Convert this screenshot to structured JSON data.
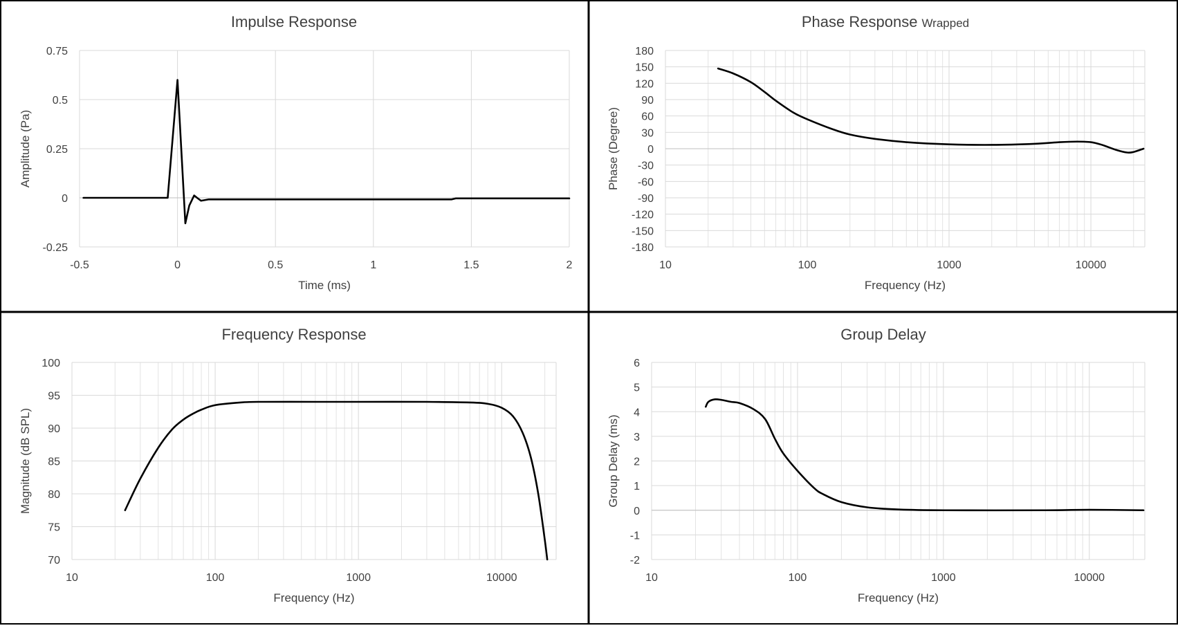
{
  "colors": {
    "line": "#000000",
    "grid": "#d9d9d9",
    "text": "#404040",
    "border": "#000000",
    "background": "#ffffff"
  },
  "chart_data": [
    {
      "id": "impulse",
      "type": "line",
      "title": "Impulse Response",
      "xlabel": "Time (ms)",
      "ylabel": "Amplitude (Pa)",
      "xscale": "linear",
      "xlim": [
        -0.5,
        2
      ],
      "ylim": [
        -0.25,
        0.75
      ],
      "xticks": [
        -0.5,
        0,
        0.5,
        1,
        1.5,
        2
      ],
      "xtick_labels": [
        "-0.5",
        "0",
        "0.5",
        "1",
        "1.5",
        "2"
      ],
      "yticks": [
        -0.25,
        0,
        0.25,
        0.5,
        0.75
      ],
      "ytick_labels": [
        "-0.25",
        "0",
        "0.25",
        "0.5",
        "0.75"
      ],
      "series": [
        {
          "name": "Impulse Response",
          "x": [
            -0.48,
            -0.05,
            0,
            0.04,
            0.06,
            0.085,
            0.1,
            0.12,
            0.16,
            0.2,
            1.0,
            1.4,
            1.42,
            2.0
          ],
          "y": [
            0,
            0,
            0.6,
            -0.13,
            -0.04,
            0.012,
            0.0,
            -0.015,
            -0.008,
            -0.008,
            -0.008,
            -0.008,
            -0.003,
            -0.003
          ]
        }
      ]
    },
    {
      "id": "phase",
      "type": "line",
      "title": "Phase Response",
      "title_suffix": "Wrapped",
      "xlabel": "Frequency (Hz)",
      "ylabel": "Phase (Degree)",
      "xscale": "log",
      "xlim": [
        10,
        24000
      ],
      "ylim": [
        -180,
        180
      ],
      "xticks": [
        10,
        100,
        1000,
        10000
      ],
      "xtick_labels": [
        "10",
        "100",
        "1000",
        "10000"
      ],
      "yticks": [
        180,
        150,
        120,
        90,
        60,
        30,
        0,
        -30,
        -60,
        -90,
        -120,
        -150,
        -180
      ],
      "ytick_labels": [
        "180",
        "150",
        "120",
        "90",
        "60",
        "30",
        "0",
        "-30",
        "-60",
        "-90",
        "-120",
        "-150",
        "-180"
      ],
      "series": [
        {
          "name": "Phase",
          "x": [
            23.5,
            30,
            40,
            50,
            60,
            80,
            100,
            150,
            200,
            300,
            500,
            1000,
            2000,
            4000,
            6000,
            8000,
            10000,
            12000,
            15000,
            18000,
            20000,
            23500
          ],
          "y": [
            147,
            138,
            122,
            104,
            88,
            66,
            54,
            36,
            26,
            18,
            12,
            8,
            7,
            9,
            12,
            13,
            12,
            7,
            -2,
            -7,
            -6,
            0
          ]
        }
      ]
    },
    {
      "id": "frequency",
      "type": "line",
      "title": "Frequency Response",
      "xlabel": "Frequency (Hz)",
      "ylabel": "Magnitude (dB SPL)",
      "xscale": "log",
      "xlim": [
        10,
        24000
      ],
      "ylim": [
        70,
        100
      ],
      "xticks": [
        10,
        100,
        1000,
        10000
      ],
      "xtick_labels": [
        "10",
        "100",
        "1000",
        "10000"
      ],
      "yticks": [
        100,
        95,
        90,
        85,
        80,
        75,
        70
      ],
      "ytick_labels": [
        "100",
        "95",
        "90",
        "85",
        "80",
        "75",
        "70"
      ],
      "series": [
        {
          "name": "Magnitude",
          "x": [
            23.5,
            30,
            40,
            50,
            60,
            70,
            80,
            100,
            150,
            200,
            500,
            1000,
            3000,
            6000,
            8000,
            10000,
            12000,
            14000,
            16000,
            18000,
            20000,
            20800
          ],
          "y": [
            77.5,
            82.3,
            87.0,
            89.8,
            91.3,
            92.2,
            92.8,
            93.5,
            93.9,
            94.0,
            94.0,
            94.0,
            94.0,
            93.9,
            93.7,
            93.1,
            91.8,
            89.3,
            85.5,
            80.0,
            73.0,
            70.0
          ]
        }
      ]
    },
    {
      "id": "group_delay",
      "type": "line",
      "title": "Group Delay",
      "xlabel": "Frequency (Hz)",
      "ylabel": "Group Delay (ms)",
      "xscale": "log",
      "xlim": [
        10,
        24000
      ],
      "ylim": [
        -2,
        6
      ],
      "xticks": [
        10,
        100,
        1000,
        10000
      ],
      "xtick_labels": [
        "10",
        "100",
        "1000",
        "10000"
      ],
      "yticks": [
        6,
        5,
        4,
        3,
        2,
        1,
        0,
        -1,
        -2
      ],
      "ytick_labels": [
        "6",
        "5",
        "4",
        "3",
        "2",
        "1",
        "0",
        "-1",
        "-2"
      ],
      "series": [
        {
          "name": "Group Delay",
          "x": [
            23.5,
            24.5,
            27,
            30,
            35,
            40,
            50,
            60,
            70,
            80,
            100,
            130,
            150,
            200,
            300,
            500,
            1000,
            5000,
            10000,
            23500
          ],
          "y": [
            4.2,
            4.4,
            4.5,
            4.48,
            4.4,
            4.35,
            4.1,
            3.7,
            2.9,
            2.3,
            1.6,
            0.9,
            0.65,
            0.33,
            0.12,
            0.03,
            0.0,
            0.0,
            0.02,
            0.0
          ]
        }
      ]
    }
  ]
}
